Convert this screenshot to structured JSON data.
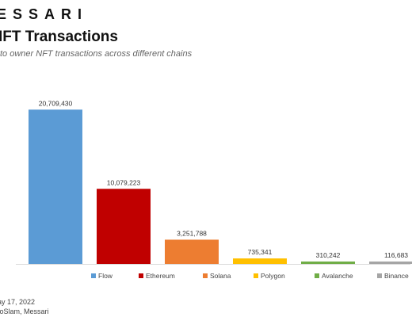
{
  "header": {
    "brand": "ESSARI",
    "title": "IFT Transactions",
    "subtitle": "to owner NFT transactions across different chains"
  },
  "footer": {
    "date": "ay 17, 2022",
    "source": "toSlam, Messari"
  },
  "chart_data": {
    "type": "bar",
    "title": "IFT Transactions",
    "subtitle": "to owner NFT transactions across different chains",
    "categories": [
      "Flow",
      "Ethereum",
      "Solana",
      "Polygon",
      "Avalanche",
      "Binance"
    ],
    "values": [
      20709430,
      10079223,
      3251788,
      735341,
      310242,
      116683
    ],
    "data_labels": [
      "20,709,430",
      "10,079,223",
      "3,251,788",
      "735,341",
      "310,242",
      "116,683"
    ],
    "colors": [
      "#5b9bd5",
      "#c00000",
      "#ed7d31",
      "#ffc000",
      "#70ad47",
      "#a5a5a5"
    ],
    "ylim": [
      0,
      25000000
    ],
    "legend": "bottom",
    "grid": false
  }
}
